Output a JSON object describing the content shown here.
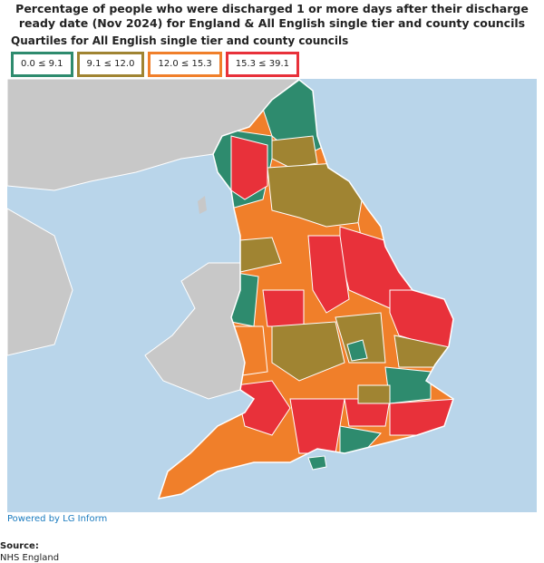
{
  "header": {
    "title": "Percentage of people who were discharged 1 or more days after their discharge ready date (Nov 2024) for England & All English single tier and county councils"
  },
  "legend": {
    "title": "Quartiles for All English single tier and county councils",
    "items": [
      {
        "label": "0.0 ≤ 9.1",
        "color": "#2e8b6e"
      },
      {
        "label": "9.1 ≤ 12.0",
        "color": "#a08432"
      },
      {
        "label": "12.0 ≤ 15.3",
        "color": "#f07f2a"
      },
      {
        "label": "15.3 ≤ 39.1",
        "color": "#e8313a"
      }
    ]
  },
  "footer": {
    "powered_by": "Powered by LG Inform",
    "source_label": "Source:",
    "source": "NHS England"
  }
}
